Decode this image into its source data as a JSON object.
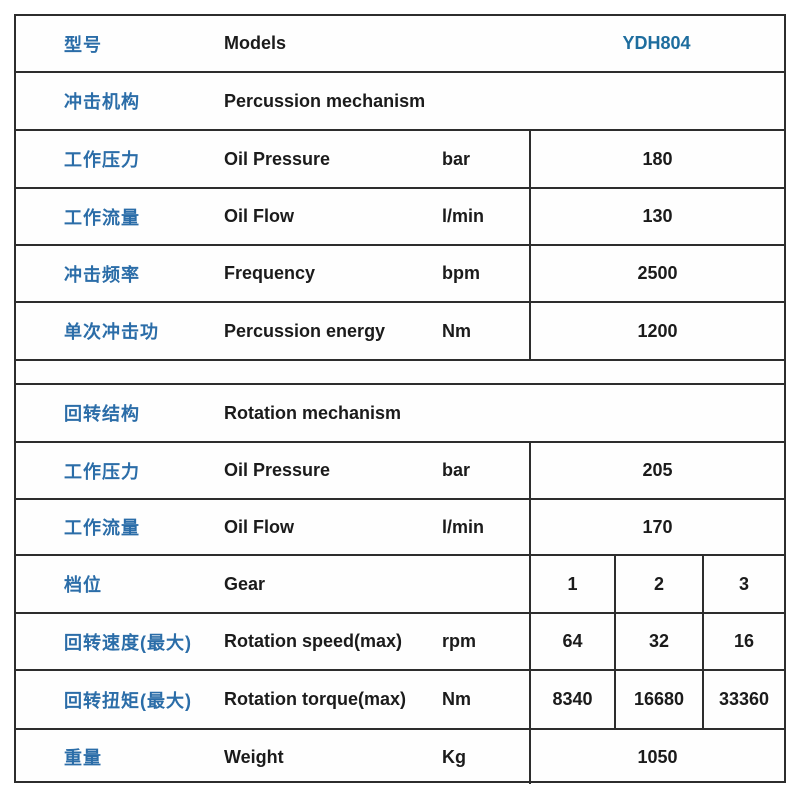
{
  "colors": {
    "label_blue": "#2b6da8",
    "model_blue": "#1e6d9e",
    "text_dark": "#1b1b1b",
    "border": "#2d2d2d"
  },
  "rows": [
    {
      "cn": "型号",
      "en": "Models",
      "value": "YDH804"
    },
    {
      "cn": "冲击机构",
      "en": "Percussion mechanism"
    },
    {
      "cn": "工作压力",
      "en": "Oil Pressure",
      "unit": "bar",
      "value": "180"
    },
    {
      "cn": "工作流量",
      "en": "Oil Flow",
      "unit": "l/min",
      "value": "130"
    },
    {
      "cn": "冲击频率",
      "en": "Frequency",
      "unit": "bpm",
      "value": "2500"
    },
    {
      "cn": "单次冲击功",
      "en": "Percussion energy",
      "unit": "Nm",
      "value": "1200"
    },
    {
      "cn": "回转结构",
      "en": "Rotation mechanism"
    },
    {
      "cn": "工作压力",
      "en": "Oil Pressure",
      "unit": "bar",
      "value": "205"
    },
    {
      "cn": "工作流量",
      "en": "Oil Flow",
      "unit": "l/min",
      "value": "170"
    },
    {
      "cn": "档位",
      "en": "Gear",
      "unit": "",
      "values": [
        "1",
        "2",
        "3"
      ]
    },
    {
      "cn": "回转速度(最大)",
      "en": "Rotation speed(max)",
      "unit": "rpm",
      "values": [
        "64",
        "32",
        "16"
      ]
    },
    {
      "cn": "回转扭矩(最大)",
      "en": "Rotation torque(max)",
      "unit": "Nm",
      "values": [
        "8340",
        "16680",
        "33360"
      ]
    },
    {
      "cn": "重量",
      "en": "Weight",
      "unit": "Kg",
      "value": "1050"
    }
  ]
}
